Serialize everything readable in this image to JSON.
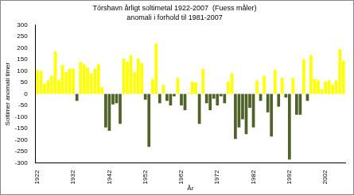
{
  "chart_data": {
    "type": "bar",
    "title": "Tórshavn årligt soltimetal 1922-2007  (Fuess måler)",
    "subtitle": "anomali i forhold til 1981-2007",
    "x_label": "År",
    "y_label": "Soltimer anomali timer",
    "categories": [
      "1922",
      null,
      null,
      null,
      null,
      null,
      null,
      null,
      null,
      null,
      "1932",
      null,
      null,
      null,
      null,
      null,
      null,
      null,
      null,
      null,
      "1942",
      null,
      null,
      null,
      null,
      null,
      null,
      null,
      null,
      null,
      "1952",
      null,
      null,
      null,
      null,
      null,
      null,
      null,
      null,
      null,
      "1962",
      null,
      null,
      null,
      null,
      null,
      null,
      null,
      null,
      null,
      "1972",
      null,
      null,
      null,
      null,
      null,
      null,
      null,
      null,
      null,
      "1982",
      null,
      null,
      null,
      null,
      null,
      null,
      null,
      null,
      null,
      "1992",
      null,
      null,
      null,
      null,
      null,
      null,
      null,
      null,
      null,
      "2002",
      null,
      null,
      null,
      null,
      null
    ],
    "values": [
      105,
      100,
      45,
      60,
      80,
      185,
      60,
      125,
      95,
      110,
      110,
      -30,
      140,
      130,
      115,
      90,
      110,
      130,
      30,
      -145,
      -160,
      -45,
      -40,
      -130,
      155,
      140,
      170,
      95,
      155,
      135,
      -25,
      -230,
      65,
      220,
      -40,
      40,
      -30,
      -50,
      -10,
      70,
      -50,
      -70,
      5,
      55,
      50,
      -130,
      110,
      -40,
      -70,
      -20,
      -50,
      -10,
      -40,
      55,
      90,
      -195,
      -145,
      -110,
      -175,
      -60,
      -145,
      60,
      -30,
      80,
      -80,
      -185,
      105,
      -55,
      70,
      -15,
      -285,
      70,
      -90,
      -90,
      150,
      -30,
      170,
      65,
      60,
      20,
      55,
      60,
      40,
      60,
      195,
      145
    ],
    "colors": [
      "#ffff00",
      "#ffff00",
      "#ffff00",
      "#ffff00",
      "#ffff00",
      "#ffff00",
      "#ffff00",
      "#ffff00",
      "#ffff00",
      "#ffff00",
      "#ffff00",
      "#4f6228",
      "#ffff00",
      "#ffff00",
      "#ffff00",
      "#ffff00",
      "#ffff00",
      "#ffff00",
      "#ffff00",
      "#4f6228",
      "#4f6228",
      "#4f6228",
      "#4f6228",
      "#4f6228",
      "#ffff00",
      "#ffff00",
      "#ffff00",
      "#ffff00",
      "#ffff00",
      "#ffff00",
      "#4f6228",
      "#4f6228",
      "#ffff00",
      "#ffff00",
      "#4f6228",
      "#ffff00",
      "#4f6228",
      "#4f6228",
      "#4f6228",
      "#ffff00",
      "#4f6228",
      "#4f6228",
      "#ffff00",
      "#ffff00",
      "#ffff00",
      "#4f6228",
      "#ffff00",
      "#4f6228",
      "#4f6228",
      "#4f6228",
      "#4f6228",
      "#4f6228",
      "#4f6228",
      "#ffff00",
      "#ffff00",
      "#4f6228",
      "#4f6228",
      "#4f6228",
      "#4f6228",
      "#4f6228",
      "#4f6228",
      "#ffff00",
      "#4f6228",
      "#ffff00",
      "#4f6228",
      "#4f6228",
      "#ffff00",
      "#4f6228",
      "#ffff00",
      "#4f6228",
      "#4f6228",
      "#ffff00",
      "#4f6228",
      "#4f6228",
      "#ffff00",
      "#4f6228",
      "#ffff00",
      "#ffff00",
      "#ffff00",
      "#ffff00",
      "#ffff00",
      "#ffff00",
      "#ffff00",
      "#ffff00",
      "#ffff00",
      "#ffff00"
    ],
    "ylim": [
      -300,
      300
    ],
    "yticks": [
      -300,
      -250,
      -200,
      -150,
      -100,
      -50,
      0,
      50,
      100,
      150,
      200,
      250,
      300
    ],
    "grid": false
  }
}
